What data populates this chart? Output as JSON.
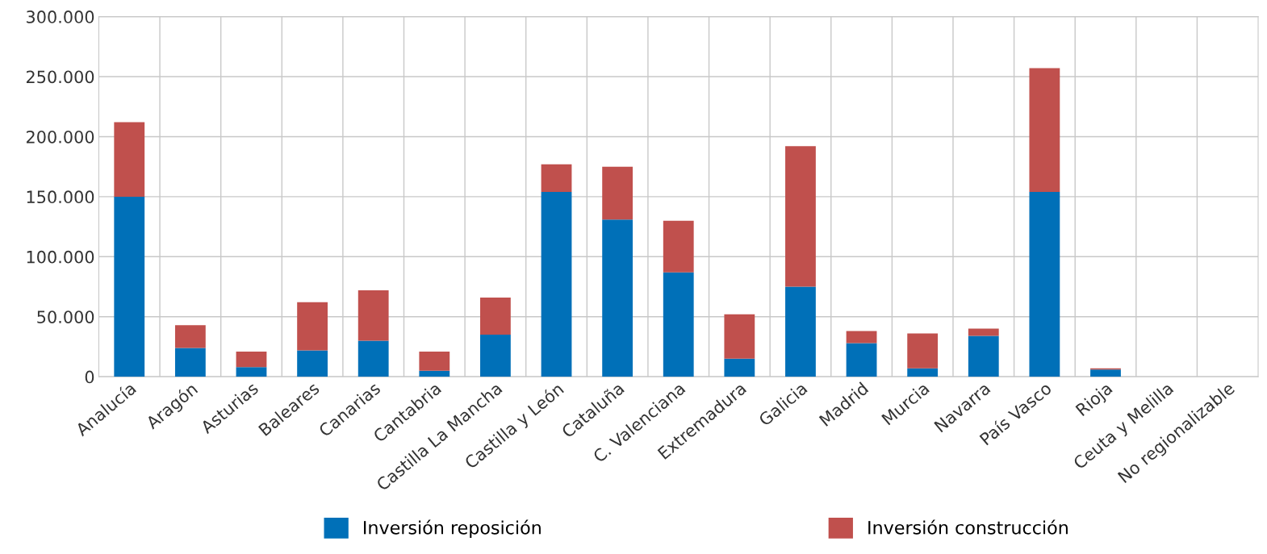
{
  "chart_data": {
    "type": "bar",
    "stacked": true,
    "grid": true,
    "legend": "bottom",
    "categories": [
      "Analucía",
      "Aragón",
      "Asturias",
      "Baleares",
      "Canarias",
      "Cantabria",
      "Castilla La Mancha",
      "Castilla y León",
      "Cataluña",
      "C. Valenciana",
      "Extremadura",
      "Galicia",
      "Madrid",
      "Murcia",
      "Navarra",
      "País Vasco",
      "Rioja",
      "Ceuta y Melilla",
      "No regionalizable"
    ],
    "series": [
      {
        "name": "Inversión reposición",
        "color": "#0070b8",
        "values": [
          150000,
          24000,
          8000,
          22000,
          30000,
          5000,
          35000,
          154000,
          131000,
          87000,
          15000,
          75000,
          28000,
          7000,
          34000,
          154000,
          6000,
          0,
          0
        ]
      },
      {
        "name": "Inversión construcción",
        "color": "#c0504d",
        "values": [
          62000,
          19000,
          13000,
          40000,
          42000,
          16000,
          31000,
          23000,
          44000,
          43000,
          37000,
          117000,
          10000,
          29000,
          6000,
          103000,
          1000,
          0,
          0
        ]
      }
    ],
    "ylim": [
      0,
      300000
    ],
    "yticks": [
      {
        "value": 0,
        "label": "0"
      },
      {
        "value": 50000,
        "label": "50.000"
      },
      {
        "value": 100000,
        "label": "100.000"
      },
      {
        "value": 150000,
        "label": "150.000"
      },
      {
        "value": 200000,
        "label": "200.000"
      },
      {
        "value": 250000,
        "label": "250.000"
      },
      {
        "value": 300000,
        "label": "300.000"
      }
    ]
  }
}
